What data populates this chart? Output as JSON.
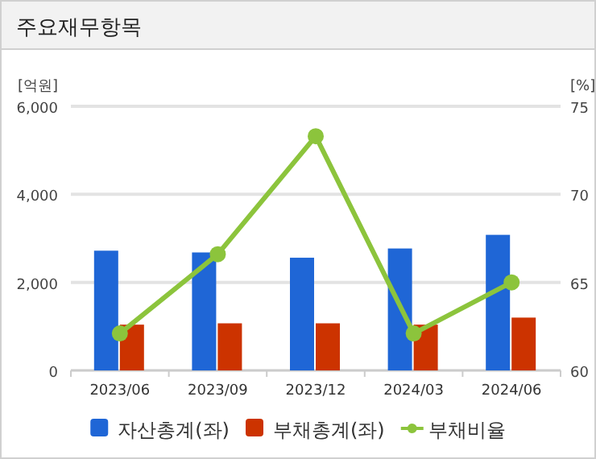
{
  "chart_data": {
    "type": "bar",
    "title": "주요재무항목",
    "ylabel": "[억원]",
    "y2label": "[%]",
    "categories": [
      "2023/06",
      "2023/09",
      "2023/12",
      "2024/03",
      "2024/06"
    ],
    "series": [
      {
        "name": "자산총계(좌)",
        "color": "#1f66d6",
        "values": [
          2720,
          2680,
          2560,
          2770,
          3080
        ]
      },
      {
        "name": "부채총계(좌)",
        "color": "#cc3300",
        "values": [
          1040,
          1070,
          1070,
          1040,
          1200
        ]
      },
      {
        "name": "부채비율",
        "color": "#8cc43c",
        "type": "line",
        "axis": "y2",
        "values": [
          62.1,
          66.6,
          73.3,
          62.1,
          65.0
        ]
      }
    ],
    "ylim": [
      0,
      6000
    ],
    "yticks": [
      {
        "value": 0,
        "label": "0"
      },
      {
        "value": 2000,
        "label": "2,000"
      },
      {
        "value": 4000,
        "label": "4,000"
      },
      {
        "value": 6000,
        "label": "6,000"
      }
    ],
    "y2lim": [
      60,
      75
    ],
    "y2ticks": [
      60,
      65,
      70,
      75
    ],
    "grid": "y",
    "legend": "bottom",
    "marker": "circle"
  }
}
